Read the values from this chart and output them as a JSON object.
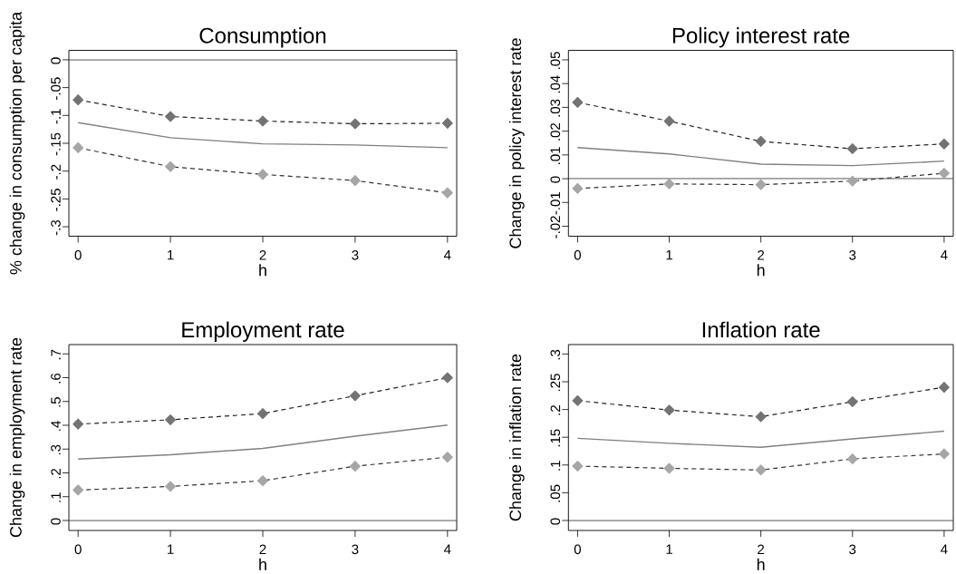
{
  "chart_data": [
    {
      "type": "line",
      "title": "Consumption",
      "xlabel": "h",
      "ylabel": "% change in consumption per capita",
      "x": [
        0,
        1,
        2,
        3,
        4
      ],
      "xlim": [
        -0.1,
        4.1
      ],
      "xticks": [
        0,
        1,
        2,
        3,
        4
      ],
      "ylim": [
        -0.317,
        0.017
      ],
      "yticks": [
        {
          "value": -0.3,
          "label": "-.3"
        },
        {
          "value": -0.25,
          "label": "-.25"
        },
        {
          "value": -0.2,
          "label": "-.2"
        },
        {
          "value": -0.15,
          "label": "-.15"
        },
        {
          "value": -0.1,
          "label": "-.1"
        },
        {
          "value": -0.05,
          "label": "-.05"
        },
        0
      ],
      "ref_lines": [
        {
          "axis": "y",
          "value": 0,
          "color": "#404040"
        }
      ],
      "series": [
        {
          "color": "#737373",
          "marker": "diamond",
          "line_style": "dashed",
          "values": [
            -0.072,
            -0.102,
            -0.11,
            -0.115,
            -0.114
          ]
        },
        {
          "color": "#808080",
          "marker": "none",
          "line_style": "solid",
          "values": [
            -0.113,
            -0.14,
            -0.151,
            -0.153,
            -0.158
          ]
        },
        {
          "color": "#a6a6a6",
          "marker": "diamond",
          "line_style": "dashed",
          "values": [
            -0.158,
            -0.192,
            -0.206,
            -0.217,
            -0.239
          ]
        }
      ]
    },
    {
      "type": "line",
      "title": "Policy interest rate",
      "xlabel": "h",
      "ylabel": "Change in policy interest rate",
      "x": [
        0,
        1,
        2,
        3,
        4
      ],
      "xlim": [
        -0.1,
        4.1
      ],
      "xticks": [
        0,
        1,
        2,
        3,
        4
      ],
      "ylim": [
        -0.0242,
        0.054
      ],
      "yticks": [
        {
          "value": -0.02,
          "label": "-.02"
        },
        {
          "value": -0.01,
          "label": "-.01"
        },
        0,
        {
          "value": 0.01,
          "label": ".01"
        },
        {
          "value": 0.02,
          "label": ".02"
        },
        {
          "value": 0.03,
          "label": ".03"
        },
        {
          "value": 0.04,
          "label": ".04"
        },
        {
          "value": 0.05,
          "label": ".05"
        }
      ],
      "ref_lines": [
        {
          "axis": "y",
          "value": 0,
          "color": "#404040"
        }
      ],
      "series": [
        {
          "color": "#737373",
          "marker": "diamond",
          "line_style": "dashed",
          "values": [
            0.0321,
            0.0242,
            0.0157,
            0.0126,
            0.0146
          ]
        },
        {
          "color": "#808080",
          "marker": "none",
          "line_style": "solid",
          "values": [
            0.0131,
            0.0104,
            0.0061,
            0.0055,
            0.0074
          ]
        },
        {
          "color": "#a6a6a6",
          "marker": "diamond",
          "line_style": "dashed",
          "values": [
            -0.0041,
            -0.0022,
            -0.0025,
            -0.001,
            0.0023
          ]
        }
      ]
    },
    {
      "type": "line",
      "title": "Employment rate",
      "xlabel": "h",
      "ylabel": "Change in employment rate",
      "x": [
        0,
        1,
        2,
        3,
        4
      ],
      "xlim": [
        -0.1,
        4.1
      ],
      "xticks": [
        0,
        1,
        2,
        3,
        4
      ],
      "ylim": [
        -0.042,
        0.739
      ],
      "yticks": [
        0,
        {
          "value": 0.1,
          "label": ".1"
        },
        {
          "value": 0.2,
          "label": ".2"
        },
        {
          "value": 0.3,
          "label": ".3"
        },
        {
          "value": 0.4,
          "label": ".4"
        },
        {
          "value": 0.5,
          "label": ".5"
        },
        {
          "value": 0.6,
          "label": ".6"
        },
        {
          "value": 0.7,
          "label": ".7"
        }
      ],
      "ref_lines": [
        {
          "axis": "y",
          "value": 0,
          "color": "#404040"
        }
      ],
      "series": [
        {
          "color": "#737373",
          "marker": "diamond",
          "line_style": "dashed",
          "values": [
            0.405,
            0.423,
            0.449,
            0.524,
            0.6
          ]
        },
        {
          "color": "#808080",
          "marker": "none",
          "line_style": "solid",
          "values": [
            0.258,
            0.276,
            0.303,
            0.354,
            0.401
          ]
        },
        {
          "color": "#a6a6a6",
          "marker": "diamond",
          "line_style": "dashed",
          "values": [
            0.128,
            0.143,
            0.167,
            0.228,
            0.266
          ]
        }
      ]
    },
    {
      "type": "line",
      "title": "Inflation rate",
      "xlabel": "h",
      "ylabel": "Change in inflation rate",
      "x": [
        0,
        1,
        2,
        3,
        4
      ],
      "xlim": [
        -0.1,
        4.1
      ],
      "xticks": [
        0,
        1,
        2,
        3,
        4
      ],
      "ylim": [
        -0.018,
        0.317
      ],
      "yticks": [
        0,
        {
          "value": 0.05,
          "label": ".05"
        },
        {
          "value": 0.1,
          "label": ".1"
        },
        {
          "value": 0.15,
          "label": ".15"
        },
        {
          "value": 0.2,
          "label": ".2"
        },
        {
          "value": 0.25,
          "label": ".25"
        },
        {
          "value": 0.3,
          "label": ".3"
        }
      ],
      "ref_lines": [
        {
          "axis": "y",
          "value": 0,
          "color": "#404040"
        }
      ],
      "series": [
        {
          "color": "#737373",
          "marker": "diamond",
          "line_style": "dashed",
          "values": [
            0.216,
            0.199,
            0.187,
            0.214,
            0.24
          ]
        },
        {
          "color": "#808080",
          "marker": "none",
          "line_style": "solid",
          "values": [
            0.148,
            0.139,
            0.132,
            0.147,
            0.161
          ]
        },
        {
          "color": "#a6a6a6",
          "marker": "diamond",
          "line_style": "dashed",
          "values": [
            0.098,
            0.094,
            0.091,
            0.111,
            0.12
          ]
        }
      ]
    }
  ]
}
